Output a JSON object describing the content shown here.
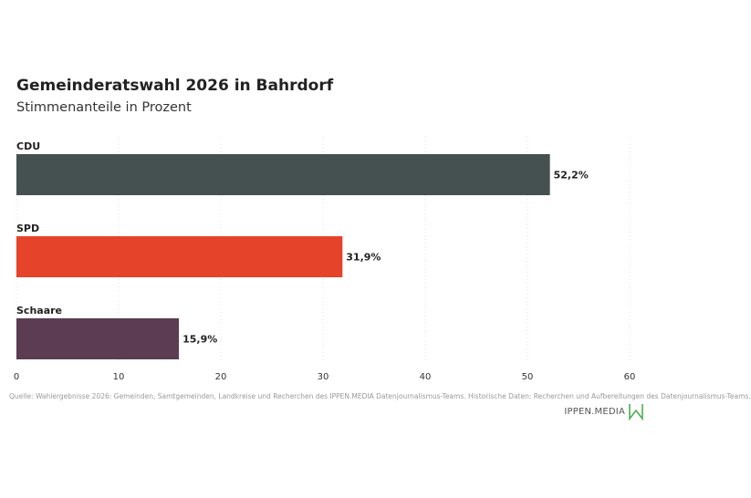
{
  "title": "Gemeinderatswahl 2026 in Bahrdorf",
  "subtitle": "Stimmenanteile in Prozent",
  "chart_data": {
    "type": "bar",
    "orientation": "horizontal",
    "categories": [
      "CDU",
      "SPD",
      "Schaare"
    ],
    "values": [
      52.2,
      31.9,
      15.9
    ],
    "value_labels": [
      "52,2%",
      "31,9%",
      "15,9%"
    ],
    "colors": [
      "#455050",
      "#e5432a",
      "#5b3c52"
    ],
    "xlim": [
      0,
      60
    ],
    "xticks": [
      0,
      10,
      20,
      30,
      40,
      50,
      60
    ],
    "grid": "vertical-dotted"
  },
  "source": "Quelle: Wahlergebnisse 2026: Gemeinden, Samtgemeinden, Landkreise und Recherchen des IPPEN.MEDIA Datenjournalismus-Teams. Historische Daten: Recherchen und Aufbereitungen des Datenjournalismus-Teams.",
  "logo": {
    "text": "IPPEN.MEDIA",
    "mark_color": "#4caf50"
  }
}
